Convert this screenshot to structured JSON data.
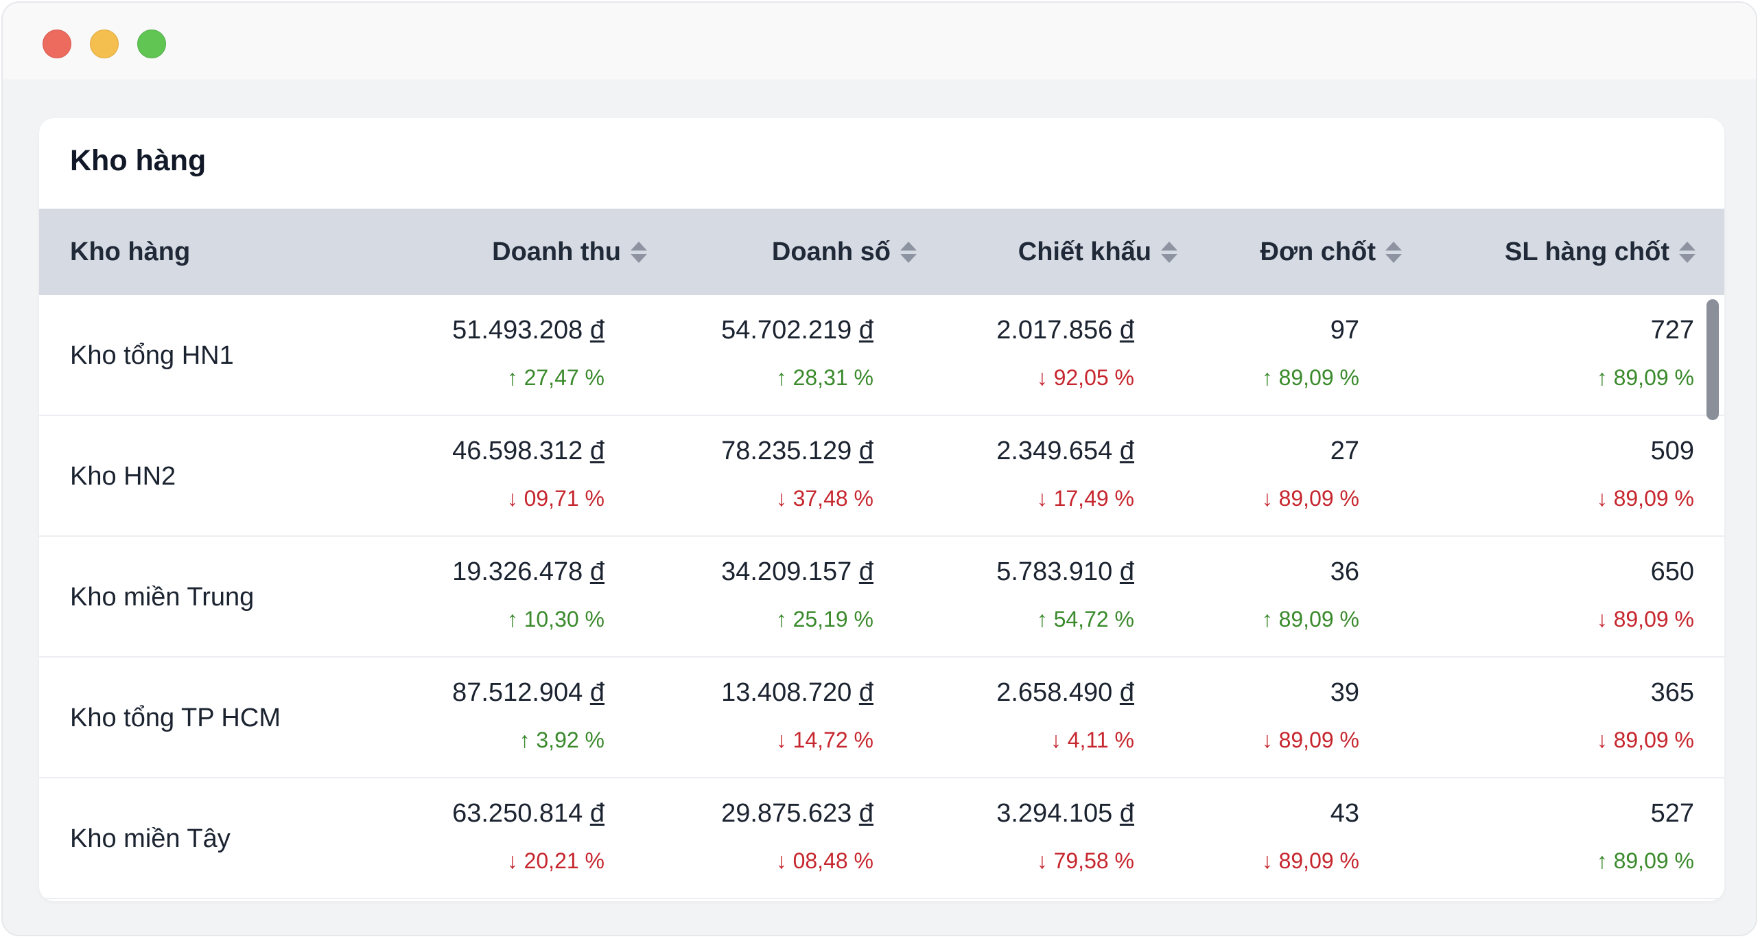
{
  "card": {
    "title": "Kho hàng"
  },
  "columns": [
    {
      "key": "name",
      "label": "Kho hàng",
      "sortable": false
    },
    {
      "key": "revenue",
      "label": "Doanh thu",
      "sortable": true
    },
    {
      "key": "sales",
      "label": "Doanh số",
      "sortable": true
    },
    {
      "key": "discount",
      "label": "Chiết khấu",
      "sortable": true
    },
    {
      "key": "orders",
      "label": "Đơn chốt",
      "sortable": true
    },
    {
      "key": "qty",
      "label": "SL hàng chốt",
      "sortable": true
    }
  ],
  "currency_symbol": "đ",
  "colors": {
    "up": "#3a8a2c",
    "down": "#c6262e",
    "header_bg": "#d6dae3"
  },
  "rows": [
    {
      "name": "Kho tổng HN1",
      "revenue": {
        "value": "51.493.208",
        "pct": "27,47 %",
        "dir": "up"
      },
      "sales": {
        "value": "54.702.219",
        "pct": "28,31 %",
        "dir": "up"
      },
      "discount": {
        "value": "2.017.856",
        "pct": "92,05 %",
        "dir": "down"
      },
      "orders": {
        "value": "97",
        "pct": "89,09 %",
        "dir": "up"
      },
      "qty": {
        "value": "727",
        "pct": "89,09 %",
        "dir": "up"
      }
    },
    {
      "name": "Kho HN2",
      "revenue": {
        "value": "46.598.312",
        "pct": "09,71 %",
        "dir": "down"
      },
      "sales": {
        "value": "78.235.129",
        "pct": "37,48 %",
        "dir": "down"
      },
      "discount": {
        "value": "2.349.654",
        "pct": "17,49 %",
        "dir": "down"
      },
      "orders": {
        "value": "27",
        "pct": "89,09 %",
        "dir": "down"
      },
      "qty": {
        "value": "509",
        "pct": "89,09 %",
        "dir": "down"
      }
    },
    {
      "name": "Kho miền Trung",
      "revenue": {
        "value": "19.326.478",
        "pct": "10,30 %",
        "dir": "up"
      },
      "sales": {
        "value": "34.209.157",
        "pct": "25,19 %",
        "dir": "up"
      },
      "discount": {
        "value": "5.783.910",
        "pct": "54,72 %",
        "dir": "up"
      },
      "orders": {
        "value": "36",
        "pct": "89,09 %",
        "dir": "up"
      },
      "qty": {
        "value": "650",
        "pct": "89,09 %",
        "dir": "down"
      }
    },
    {
      "name": "Kho tổng TP HCM",
      "revenue": {
        "value": "87.512.904",
        "pct": "3,92 %",
        "dir": "up"
      },
      "sales": {
        "value": "13.408.720",
        "pct": "14,72 %",
        "dir": "down"
      },
      "discount": {
        "value": "2.658.490",
        "pct": "4,11 %",
        "dir": "down"
      },
      "orders": {
        "value": "39",
        "pct": "89,09 %",
        "dir": "down"
      },
      "qty": {
        "value": "365",
        "pct": "89,09 %",
        "dir": "down"
      }
    },
    {
      "name": "Kho miền Tây",
      "revenue": {
        "value": "63.250.814",
        "pct": "20,21 %",
        "dir": "down"
      },
      "sales": {
        "value": "29.875.623",
        "pct": "08,48 %",
        "dir": "down"
      },
      "discount": {
        "value": "3.294.105",
        "pct": "79,58 %",
        "dir": "down"
      },
      "orders": {
        "value": "43",
        "pct": "89,09 %",
        "dir": "down"
      },
      "qty": {
        "value": "527",
        "pct": "89,09 %",
        "dir": "up"
      }
    }
  ]
}
